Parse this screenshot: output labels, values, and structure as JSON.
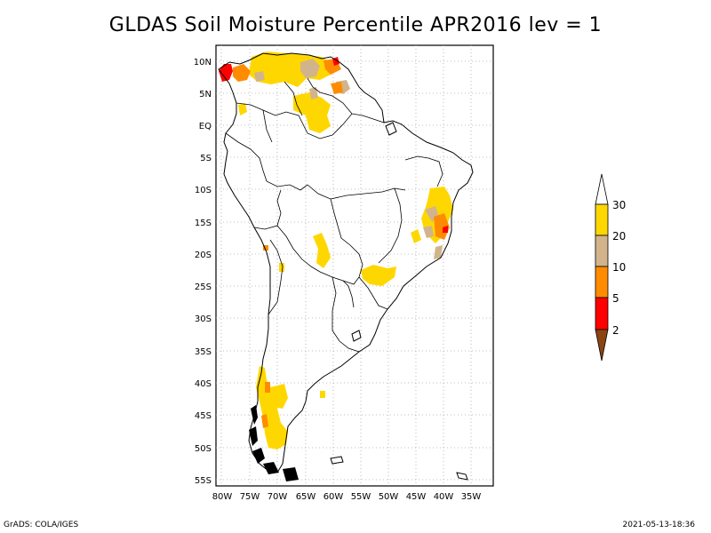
{
  "title": "GLDAS Soil Moisture Percentile APR2016 lev = 1",
  "footer": {
    "left": "GrADS: COLA/IGES",
    "right": "2021-05-13-18:36"
  },
  "map": {
    "lon_range": [
      -81,
      -32
    ],
    "lat_range": [
      -56,
      12
    ],
    "lon_ticks": [
      "80W",
      "75W",
      "70W",
      "65W",
      "60W",
      "55W",
      "50W",
      "45W",
      "40W",
      "35W"
    ],
    "lat_ticks": [
      "10N",
      "5N",
      "EQ",
      "5S",
      "10S",
      "15S",
      "20S",
      "25S",
      "30S",
      "35S",
      "40S",
      "45S",
      "50S",
      "55S"
    ],
    "grid": "dotted"
  },
  "colorbar": {
    "labels": [
      "2",
      "5",
      "10",
      "20",
      "30"
    ],
    "colors": {
      "below_2": "#8b4513",
      "2_5": "#ff0000",
      "5_10": "#ff8c00",
      "10_20": "#d2b48c",
      "20_30": "#ffd700",
      "above_30": "#ffffff"
    }
  }
}
